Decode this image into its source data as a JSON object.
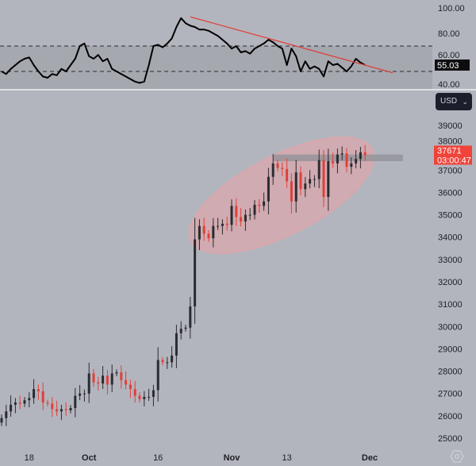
{
  "chart_data": [
    {
      "type": "line",
      "indicator_pane": true,
      "y_ticks": [
        "100.00",
        "80.00",
        "60.00",
        "40.00"
      ],
      "ylim": [
        35,
        105
      ],
      "reference_lines": [
        70,
        50
      ],
      "current_value_label": "55.03",
      "x_dates_start": "Sep 12",
      "x_interval": "1 day",
      "values": [
        50,
        48,
        52,
        55,
        58,
        60,
        61,
        55,
        50,
        46,
        45,
        48,
        47,
        52,
        50,
        55,
        60,
        70,
        72,
        62,
        60,
        63,
        58,
        60,
        52,
        50,
        48,
        46,
        44,
        42,
        41,
        42,
        55,
        70,
        71,
        69,
        72,
        76,
        85,
        92,
        88,
        86,
        85,
        83,
        83,
        82,
        80,
        78,
        75,
        72,
        68,
        70,
        65,
        66,
        64,
        68,
        70,
        72,
        75,
        73,
        70,
        68,
        55,
        68,
        62,
        50,
        58,
        52,
        54,
        52,
        46,
        58,
        55,
        56,
        53,
        50,
        54,
        60,
        57,
        55.03
      ],
      "trendline": {
        "from": {
          "date": "Oct 23",
          "value": 93
        },
        "to": {
          "date": "Dec 6",
          "value": 49
        },
        "color": "#e0403a"
      },
      "line_color": "#000000"
    },
    {
      "type": "candlestick",
      "y_ticks": [
        "39000",
        "38000",
        "37000",
        "36000",
        "35000",
        "34000",
        "33000",
        "32000",
        "31000",
        "30000",
        "29000",
        "28000",
        "27000",
        "26000",
        "25000"
      ],
      "ylim": [
        24500,
        39800
      ],
      "x_ticks": [
        {
          "label": "18",
          "bold": false,
          "index": 6
        },
        {
          "label": "Oct",
          "bold": true,
          "index": 19
        },
        {
          "label": "16",
          "bold": false,
          "index": 34
        },
        {
          "label": "Nov",
          "bold": true,
          "index": 50
        },
        {
          "label": "13",
          "bold": false,
          "index": 62
        },
        {
          "label": "Dec",
          "bold": true,
          "index": 80
        }
      ],
      "closes": [
        25900,
        26200,
        26500,
        26600,
        26550,
        26700,
        26800,
        27200,
        27100,
        26600,
        26550,
        26300,
        26200,
        26300,
        26250,
        26350,
        26900,
        27000,
        27000,
        27900,
        27500,
        27450,
        27800,
        27400,
        27900,
        27950,
        27600,
        27400,
        27200,
        26900,
        26750,
        26850,
        26850,
        27150,
        28500,
        28400,
        28400,
        28700,
        29700,
        29900,
        29950,
        30900,
        33900,
        34500,
        34150,
        33950,
        34500,
        34500,
        34600,
        34550,
        35400,
        34900,
        34700,
        35000,
        35000,
        35450,
        35400,
        35600,
        36700,
        37300,
        37100,
        37050,
        36500,
        35600,
        36900,
        36150,
        36400,
        36600,
        36600,
        37450,
        35800,
        37400,
        37300,
        37700,
        37750,
        37150,
        37300,
        37500,
        37800,
        37671
      ],
      "up_color": "#2a2b30",
      "down_color": "#e0403a",
      "currency": "USD",
      "last_price": "37671",
      "countdown": "03:00:47",
      "last_price_color": "#f0433a",
      "annotations": {
        "ellipse_color": "#e8a2a6",
        "zone_price_range": [
          37400,
          37700
        ],
        "zone_color": "#8f9097"
      }
    }
  ]
}
